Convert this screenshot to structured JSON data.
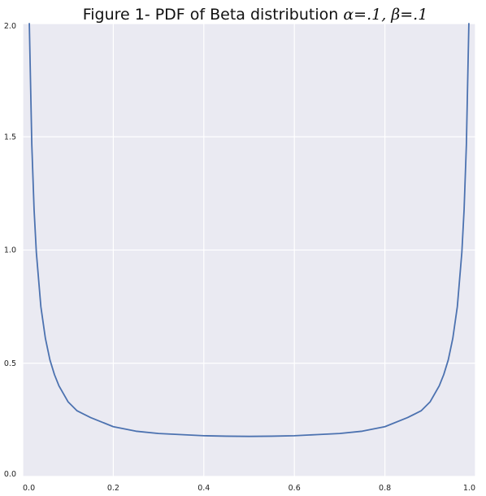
{
  "chart_data": {
    "type": "line",
    "title_text": "Figure 1- PDF of Beta distribution ",
    "title_math": "α=.1, β=.1",
    "xlabel": "",
    "ylabel": "",
    "xlim": [
      0.0,
      1.0
    ],
    "ylim": [
      0.0,
      2.0
    ],
    "x_ticks": [
      0.0,
      0.2,
      0.4,
      0.6,
      0.8,
      1.0
    ],
    "x_tick_labels": [
      "0.0",
      "0.2",
      "0.4",
      "0.6",
      "0.8",
      "1.0"
    ],
    "y_ticks": [
      0.0,
      0.5,
      1.0,
      1.5,
      2.0
    ],
    "y_tick_labels": [
      "0.0",
      "0.5",
      "1.0",
      "1.5",
      "2.0"
    ],
    "grid": true,
    "series": [
      {
        "color": "#4c72b0",
        "x": [
          0.0145,
          0.02,
          0.025,
          0.03,
          0.04,
          0.05,
          0.06,
          0.07,
          0.08,
          0.1,
          0.12,
          0.15,
          0.2,
          0.25,
          0.3,
          0.35,
          0.4,
          0.45,
          0.5,
          0.55,
          0.6,
          0.65,
          0.7,
          0.75,
          0.8,
          0.85,
          0.88,
          0.9,
          0.92,
          0.93,
          0.94,
          0.95,
          0.96,
          0.97,
          0.975,
          0.98,
          0.9855
        ],
        "y": [
          2.0,
          1.465,
          1.18,
          0.99,
          0.75,
          0.61,
          0.515,
          0.45,
          0.4,
          0.33,
          0.29,
          0.26,
          0.22,
          0.2,
          0.19,
          0.185,
          0.18,
          0.178,
          0.177,
          0.178,
          0.18,
          0.185,
          0.19,
          0.2,
          0.22,
          0.26,
          0.29,
          0.33,
          0.4,
          0.45,
          0.515,
          0.61,
          0.75,
          0.99,
          1.18,
          1.465,
          2.0
        ]
      }
    ]
  }
}
